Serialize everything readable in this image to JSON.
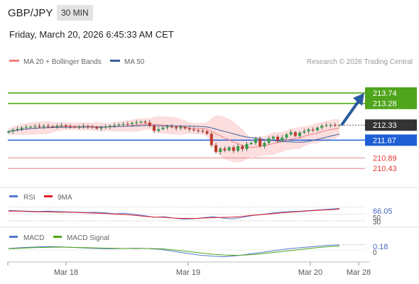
{
  "header": {
    "pair": "GBP/JPY",
    "timeframe": "30 MIN",
    "datetime": "Friday, March 20, 2026 6:45:33 AM CET"
  },
  "legend": {
    "ma20": "MA 20 + Bollinger Bands",
    "ma50": "MA 50",
    "credit": "Research © 2026 Trading Central",
    "rsi": "RSI",
    "rsi_ma": "9MA",
    "macd": "MACD",
    "macd_signal": "MACD Signal"
  },
  "colors": {
    "green_level": "#4fa51b",
    "blue_level": "#1f5fd6",
    "red_level": "#e8868a",
    "candle_up": "#2e9e4a",
    "candle_down": "#c0392b",
    "band": "#fbd6d6",
    "ma20": "#f08080",
    "ma50": "#3c5f9a",
    "arrow": "#2a5aa0",
    "rsi_line": "#5577cc",
    "rsi_ma": "#e0202a",
    "macd_line": "#5577cc",
    "macd_signal": "#4fa51b"
  },
  "chart_data": [
    {
      "type": "candlestick",
      "title": "GBP/JPY 30 MIN",
      "x_ticks": [
        "Mar 18",
        "Mar 19",
        "Mar 20",
        "Mar 28"
      ],
      "current_price": 212.33,
      "levels": [
        {
          "value": 213.74,
          "label": "213.74",
          "kind": "resistance",
          "color": "#4fa51b"
        },
        {
          "value": 213.28,
          "label": "213.28",
          "kind": "resistance",
          "color": "#4fa51b"
        },
        {
          "value": 211.67,
          "label": "211.67",
          "kind": "pivot",
          "color": "#1f5fd6"
        },
        {
          "value": 210.89,
          "label": "210.89",
          "kind": "support",
          "color": "#e53935"
        },
        {
          "value": 210.43,
          "label": "210.43",
          "kind": "support",
          "color": "#e53935"
        }
      ],
      "close_series": [
        212.05,
        212.12,
        212.16,
        212.22,
        212.25,
        212.26,
        212.29,
        212.27,
        212.3,
        212.28,
        212.25,
        212.3,
        212.32,
        212.28,
        212.26,
        212.24,
        212.25,
        212.29,
        212.26,
        212.24,
        212.18,
        212.22,
        212.26,
        212.3,
        212.33,
        212.36,
        212.38,
        212.37,
        212.42,
        212.45,
        212.48,
        212.44,
        212.3,
        212.08,
        212.15,
        212.22,
        212.27,
        212.25,
        212.19,
        212.24,
        212.18,
        212.14,
        212.1,
        212.08,
        212.06,
        211.95,
        211.45,
        211.15,
        211.3,
        211.22,
        211.36,
        211.2,
        211.41,
        211.28,
        211.5,
        211.55,
        211.72,
        211.4,
        211.55,
        211.74,
        211.82,
        211.65,
        211.78,
        211.92,
        212.02,
        211.85,
        212.0,
        212.06,
        212.14,
        212.1,
        212.22,
        212.3,
        212.33,
        212.34,
        212.32,
        212.33
      ],
      "projection": {
        "from": 212.33,
        "to": 213.74
      }
    },
    {
      "type": "line",
      "title": "RSI",
      "series": [
        {
          "name": "RSI",
          "values": [
            60,
            59,
            58,
            57,
            58,
            57,
            56,
            55,
            54,
            55,
            53,
            50,
            52,
            48,
            45,
            40,
            42,
            38,
            35,
            36,
            39,
            42,
            38,
            36,
            40,
            45,
            48,
            52,
            55,
            57,
            58,
            60,
            62,
            64,
            66.05
          ]
        },
        {
          "name": "9MA",
          "values": [
            58,
            58,
            57,
            56,
            56,
            55,
            55,
            54,
            53,
            52,
            51,
            49,
            48,
            46,
            43,
            41,
            40,
            38,
            37,
            37,
            38,
            39,
            40,
            41,
            43,
            46,
            48,
            50,
            53,
            55,
            57,
            59,
            61,
            62,
            64
          ]
        }
      ],
      "value_labels": [
        "66.05",
        "50",
        "30"
      ]
    },
    {
      "type": "line",
      "title": "MACD",
      "series": [
        {
          "name": "MACD",
          "values": [
            0.05,
            0.08,
            0.1,
            0.12,
            0.11,
            0.09,
            0.07,
            0.05,
            0.04,
            0.05,
            0.06,
            0.05,
            0.02,
            -0.05,
            -0.12,
            -0.18,
            -0.22,
            -0.24,
            -0.2,
            -0.14,
            -0.08,
            -0.02,
            0.04,
            0.08,
            0.12,
            0.16,
            0.18
          ]
        },
        {
          "name": "MACD Signal",
          "values": [
            0.04,
            0.06,
            0.08,
            0.09,
            0.1,
            0.09,
            0.08,
            0.07,
            0.06,
            0.05,
            0.05,
            0.05,
            0.04,
            0.0,
            -0.05,
            -0.1,
            -0.15,
            -0.18,
            -0.19,
            -0.17,
            -0.13,
            -0.08,
            -0.03,
            0.02,
            0.07,
            0.11,
            0.14
          ]
        }
      ],
      "value_labels": [
        "0.18",
        "0"
      ]
    }
  ]
}
